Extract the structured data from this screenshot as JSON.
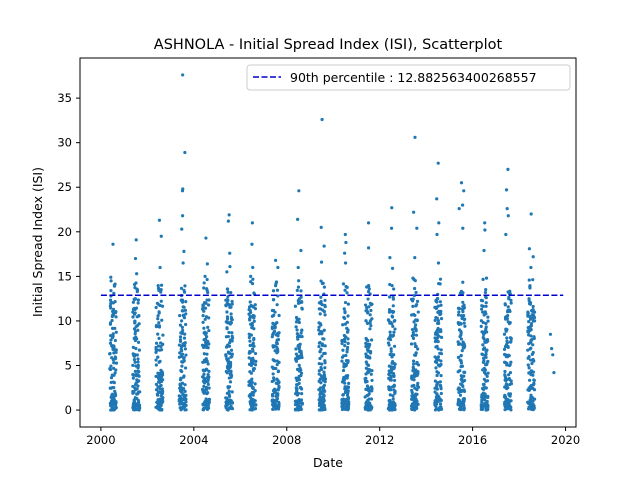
{
  "chart_data": {
    "type": "scatter",
    "title": "ASHNOLA - Initial Spread Index (ISI), Scatterplot",
    "xlabel": "Date",
    "ylabel": "Initial Spread Index (ISI)",
    "xlim": [
      1999.1,
      2020.45
    ],
    "ylim": [
      -1.9,
      39.5
    ],
    "x_ticks": [
      2000,
      2004,
      2008,
      2012,
      2016,
      2020
    ],
    "y_ticks": [
      0,
      5,
      10,
      15,
      20,
      25,
      30,
      35
    ],
    "grid": false,
    "legend_position": "top-right",
    "series_color": "#1f77b4",
    "reference_line": {
      "label": "90th percentile : 12.882563400268557",
      "value": 12.882563400268557,
      "color": "#0000cc",
      "style": "dashed",
      "x_range": [
        2000.0,
        2019.9
      ]
    },
    "season_start": 0.37,
    "season_end": 0.67,
    "fire_seasons": [
      {
        "year": 2000,
        "max": 18.6,
        "highlights": [
          14.9,
          13.4,
          12.8
        ]
      },
      {
        "year": 2001,
        "max": 19.1,
        "highlights": [
          17.0,
          15.3,
          13.5
        ]
      },
      {
        "year": 2002,
        "max": 21.3,
        "highlights": [
          19.5,
          16.0,
          14.0
        ]
      },
      {
        "year": 2003,
        "max": 37.6,
        "highlights": [
          28.9,
          24.8,
          24.6,
          21.8,
          20.3,
          17.8,
          16.5
        ]
      },
      {
        "year": 2004,
        "max": 19.3,
        "highlights": [
          16.4,
          15.0,
          13.4
        ]
      },
      {
        "year": 2005,
        "max": 21.9,
        "highlights": [
          21.2,
          17.6,
          16.1,
          15.5
        ]
      },
      {
        "year": 2006,
        "max": 21.0,
        "highlights": [
          18.6,
          16.0,
          15.0
        ]
      },
      {
        "year": 2007,
        "max": 16.8,
        "highlights": [
          16.0,
          14.2
        ]
      },
      {
        "year": 2008,
        "max": 24.6,
        "highlights": [
          21.4,
          17.9,
          16.0
        ]
      },
      {
        "year": 2009,
        "max": 32.6,
        "highlights": [
          20.5,
          18.4,
          16.6,
          14.2
        ]
      },
      {
        "year": 2010,
        "max": 19.7,
        "highlights": [
          18.8,
          17.6,
          16.5
        ]
      },
      {
        "year": 2011,
        "max": 21.0,
        "highlights": [
          18.2,
          13.6
        ]
      },
      {
        "year": 2012,
        "max": 22.7,
        "highlights": [
          20.4,
          17.1,
          15.9
        ]
      },
      {
        "year": 2013,
        "max": 30.6,
        "highlights": [
          22.2,
          20.4,
          17.1,
          14.8
        ]
      },
      {
        "year": 2014,
        "max": 27.7,
        "highlights": [
          23.7,
          21.0,
          19.7,
          16.5
        ]
      },
      {
        "year": 2015,
        "max": 25.5,
        "highlights": [
          24.6,
          23.0,
          22.6,
          20.4
        ]
      },
      {
        "year": 2016,
        "max": 21.0,
        "highlights": [
          20.2,
          17.9,
          14.8
        ]
      },
      {
        "year": 2017,
        "max": 27.0,
        "highlights": [
          24.7,
          22.6,
          21.8,
          19.7
        ]
      },
      {
        "year": 2018,
        "max": 22.0,
        "highlights": [
          18.1,
          17.2,
          16.0
        ]
      }
    ],
    "sparse_points": [
      {
        "x": 2019.35,
        "y": 8.5
      },
      {
        "x": 2019.4,
        "y": 6.9
      },
      {
        "x": 2019.45,
        "y": 6.2
      },
      {
        "x": 2019.5,
        "y": 4.2
      }
    ]
  }
}
